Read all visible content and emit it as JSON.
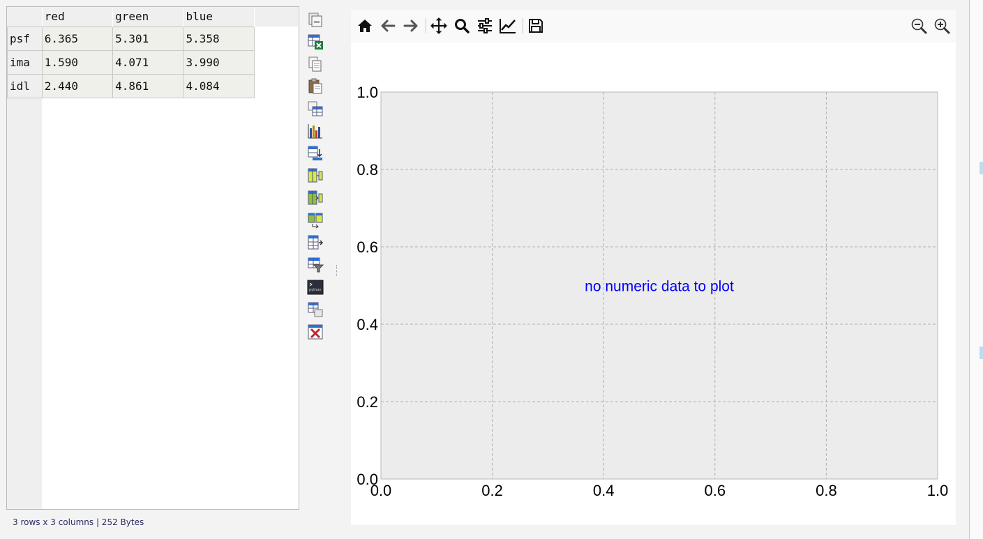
{
  "table": {
    "columns": [
      "red",
      "green",
      "blue"
    ],
    "rows": [
      {
        "label": "psf",
        "values": [
          "6.365",
          "5.301",
          "5.358"
        ]
      },
      {
        "label": "ima",
        "values": [
          "1.590",
          "4.071",
          "3.990"
        ]
      },
      {
        "label": "idl",
        "values": [
          "2.440",
          "4.861",
          "4.084"
        ]
      }
    ]
  },
  "status": "3 rows x 3 columns | 252 Bytes",
  "tools": [
    "open-folder-icon",
    "export-excel-icon",
    "copy-icon",
    "paste-icon",
    "table-view-icon",
    "bar-chart-icon",
    "table-sort-icon",
    "add-column-icon",
    "insert-column-icon",
    "merge-tables-icon",
    "export-table-icon",
    "filter-icon",
    "python-console-icon",
    "duplicate-table-icon",
    "close-table-icon"
  ],
  "plot_toolbar": [
    "home-icon",
    "back-icon",
    "forward-icon",
    "pan-icon",
    "zoom-icon",
    "subplots-config-icon",
    "edit-axes-icon",
    "save-icon",
    "zoom-out-icon",
    "zoom-in-icon"
  ],
  "colors": {
    "message": "#0000ff",
    "plot_bg": "#ececec",
    "grid": "#b0b0b0"
  },
  "chart_data": {
    "type": "line",
    "series": [],
    "message": "no numeric data to plot",
    "xlim": [
      0.0,
      1.0
    ],
    "ylim": [
      0.0,
      1.0
    ],
    "xticks": [
      "0.0",
      "0.2",
      "0.4",
      "0.6",
      "0.8",
      "1.0"
    ],
    "yticks": [
      "0.0",
      "0.2",
      "0.4",
      "0.6",
      "0.8",
      "1.0"
    ],
    "grid": true
  }
}
